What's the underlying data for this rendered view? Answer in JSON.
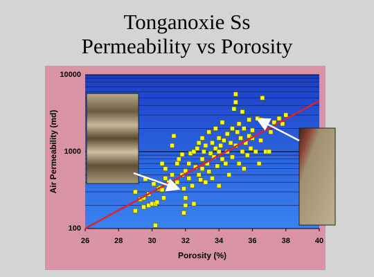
{
  "chart_data": {
    "type": "scatter",
    "title_lines": [
      "Tonganoxie Ss",
      "Permeability vs Porosity"
    ],
    "x_label": "Porosity (%)",
    "y_label": "Air Permeability (md)",
    "xlim": [
      26,
      40
    ],
    "xticks": [
      26,
      28,
      30,
      32,
      34,
      36,
      38,
      40
    ],
    "ylim": [
      100,
      10000
    ],
    "yticks": [
      100,
      1000,
      10000
    ],
    "y_log": true,
    "grid": true,
    "minor_grid": true,
    "point_color": "#ffff00",
    "x": [
      29.0,
      29.0,
      29.3,
      29.5,
      29.5,
      29.6,
      29.8,
      29.8,
      30.0,
      30.1,
      30.2,
      30.3,
      30.2,
      30.4,
      30.5,
      30.6,
      30.6,
      30.8,
      30.8,
      30.7,
      31.0,
      31.2,
      31.2,
      31.3,
      31.5,
      31.5,
      31.6,
      31.8,
      31.9,
      31.8,
      31.9,
      32.0,
      32.0,
      32.0,
      32.2,
      32.2,
      32.3,
      32.4,
      32.5,
      32.5,
      32.6,
      32.7,
      32.8,
      32.8,
      32.9,
      33.0,
      33.0,
      33.0,
      33.1,
      33.2,
      33.2,
      33.3,
      33.4,
      33.4,
      33.5,
      33.6,
      33.6,
      33.7,
      33.8,
      33.8,
      33.9,
      34.0,
      34.0,
      34.0,
      34.1,
      34.2,
      34.2,
      34.3,
      34.4,
      34.5,
      34.5,
      34.6,
      34.7,
      34.8,
      34.8,
      34.9,
      35.0,
      35.0,
      35.0,
      35.1,
      35.2,
      35.2,
      35.3,
      35.4,
      35.4,
      35.5,
      35.5,
      35.6,
      35.7,
      35.8,
      35.8,
      35.9,
      36.0,
      36.2,
      36.3,
      36.5,
      36.5,
      36.6,
      36.7,
      36.8,
      37.0,
      37.1,
      37.3,
      37.6,
      37.8,
      38.0,
      36.0,
      36.4
    ],
    "y": [
      170,
      300,
      240,
      250,
      190,
      440,
      280,
      200,
      210,
      380,
      210,
      220,
      110,
      330,
      340,
      700,
      320,
      450,
      600,
      250,
      400,
      500,
      1200,
      1600,
      700,
      400,
      800,
      500,
      160,
      920,
      330,
      200,
      250,
      560,
      450,
      700,
      950,
      360,
      1000,
      210,
      630,
      1100,
      1300,
      500,
      430,
      600,
      1500,
      800,
      1000,
      400,
      1200,
      700,
      1800,
      550,
      950,
      1300,
      450,
      850,
      1100,
      2000,
      650,
      1500,
      1000,
      360,
      1200,
      2400,
      800,
      1400,
      700,
      1700,
      1000,
      500,
      1300,
      2000,
      850,
      3600,
      5600,
      4400,
      1200,
      1800,
      2300,
      700,
      1500,
      1000,
      3300,
      2000,
      600,
      1300,
      900,
      2600,
      1600,
      1100,
      1900,
      1000,
      2700,
      2600,
      1400,
      5000,
      2200,
      1000,
      1000,
      1800,
      2400,
      2700,
      2300,
      3000,
      1500,
      700
    ],
    "trend_line": {
      "x": [
        26,
        40
      ],
      "y": [
        100,
        4600
      ],
      "color": "#e0202a"
    }
  }
}
